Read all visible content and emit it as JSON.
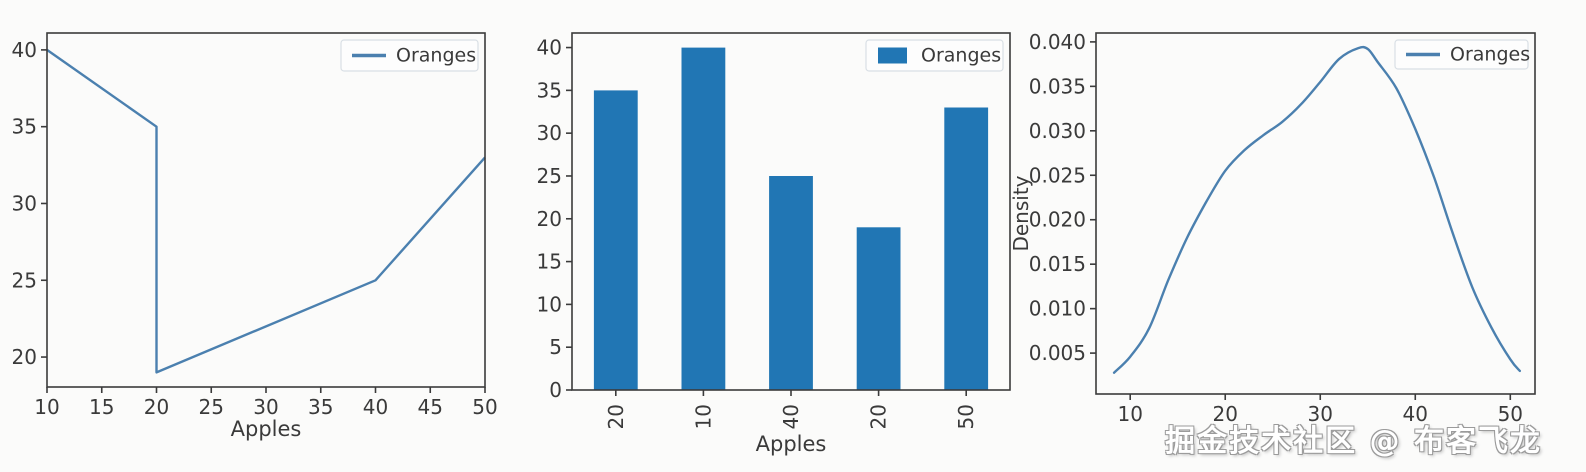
{
  "watermark": "掘金技术社区 @ 布客飞龙",
  "colors": {
    "line": "#4b80af",
    "bar": "#2176b4",
    "axis": "#3b3b3b",
    "tick_text": "#3a3a3a",
    "legend_bg": "#fdfdfd",
    "legend_border": "#d9dfe5",
    "legend_text": "#262626"
  },
  "chart_data": [
    {
      "type": "line",
      "title": "",
      "xlabel": "Apples",
      "ylabel": "",
      "legend": [
        "Oranges"
      ],
      "legend_position": "upper right",
      "grid": false,
      "x": [
        10,
        20,
        20,
        40,
        50
      ],
      "y": [
        40,
        35,
        19,
        25,
        33
      ],
      "xticks": [
        10,
        15,
        20,
        25,
        30,
        35,
        40,
        45,
        50
      ],
      "yticks": [
        20,
        25,
        30,
        35,
        40
      ],
      "xlim": [
        10,
        50
      ],
      "ylim": [
        18.05,
        41.1
      ]
    },
    {
      "type": "bar",
      "title": "",
      "xlabel": "Apples",
      "ylabel": "",
      "legend": [
        "Oranges"
      ],
      "legend_position": "upper right",
      "grid": false,
      "categories": [
        "20",
        "10",
        "40",
        "20",
        "50"
      ],
      "values": [
        35,
        40,
        25,
        19,
        33
      ],
      "yticks": [
        0,
        5,
        10,
        15,
        20,
        25,
        30,
        35,
        40
      ],
      "ylim": [
        0,
        41.7
      ],
      "bar_width_frac": 0.5,
      "tick_label_rotation": 90
    },
    {
      "type": "line",
      "subtype": "kde",
      "title": "",
      "xlabel": "",
      "ylabel": "Density",
      "legend": [
        "Oranges"
      ],
      "legend_position": "upper right",
      "grid": false,
      "x": [
        8.3,
        10,
        12,
        14,
        16,
        18,
        20,
        22,
        24,
        26,
        28,
        30,
        32,
        34,
        35,
        36,
        38,
        40,
        42,
        44,
        46,
        48,
        50,
        51
      ],
      "y": [
        0.0028,
        0.0046,
        0.0078,
        0.0132,
        0.018,
        0.022,
        0.0255,
        0.0278,
        0.0295,
        0.031,
        0.033,
        0.0355,
        0.0381,
        0.0393,
        0.0392,
        0.0378,
        0.0348,
        0.0302,
        0.0247,
        0.0183,
        0.0124,
        0.0079,
        0.0043,
        0.003
      ],
      "xticks": [
        10,
        20,
        30,
        40,
        50
      ],
      "yticks": [
        0.005,
        0.01,
        0.015,
        0.02,
        0.025,
        0.03,
        0.035,
        0.04
      ],
      "ytick_format_decimals": 3,
      "xlim": [
        6.4,
        52.6
      ],
      "ylim": [
        0.0004,
        0.041
      ]
    }
  ]
}
